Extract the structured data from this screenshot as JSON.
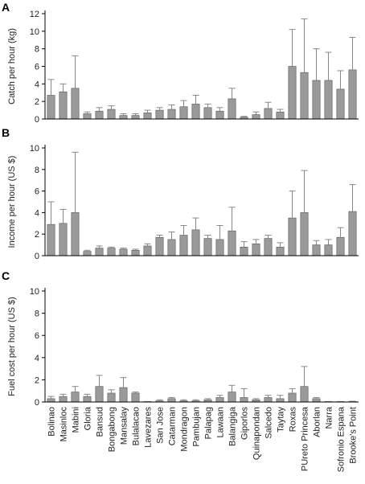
{
  "colors": {
    "bar": "#9a9a9a",
    "bar_stroke": "#555555",
    "error": "#888888",
    "axis": "#000000"
  },
  "chart_data": [
    {
      "type": "bar",
      "panel": "A",
      "ylabel": "Catch per hour (kg)",
      "ylim": [
        0,
        12
      ],
      "yticks": [
        0,
        2,
        4,
        6,
        8,
        10,
        12
      ],
      "categories": [
        "Bolinao",
        "Masinloc",
        "Mabini",
        "Gloria",
        "Bansud",
        "Bongabong",
        "Mansalay",
        "Bulalacao",
        "Lavezares",
        "San Jose",
        "Catarman",
        "Mondragon",
        "Pambujan",
        "Palapag",
        "Lawaan",
        "Balangiga",
        "Giporlos",
        "Quinapondan",
        "Salcedo",
        "Taytay",
        "Roxas",
        "PUreto Princesa",
        "Aborlan",
        "Narra",
        "Sofronio Espana",
        "Brooke's Point"
      ],
      "values": [
        2.7,
        3.1,
        3.5,
        0.6,
        0.9,
        1.1,
        0.4,
        0.4,
        0.7,
        1.0,
        1.1,
        1.4,
        1.7,
        1.3,
        0.9,
        2.3,
        0.2,
        0.5,
        1.2,
        0.8,
        6.0,
        5.3,
        4.4,
        4.4,
        3.4,
        5.6
      ],
      "errors": [
        1.8,
        0.9,
        3.7,
        0.2,
        0.4,
        0.4,
        0.2,
        0.2,
        0.3,
        0.3,
        0.5,
        0.7,
        1.0,
        0.4,
        0.4,
        1.2,
        0.1,
        0.3,
        0.7,
        0.3,
        4.2,
        6.1,
        3.6,
        3.2,
        2.1,
        3.7
      ]
    },
    {
      "type": "bar",
      "panel": "B",
      "ylabel": "Income per hour (US $)",
      "ylim": [
        0,
        10
      ],
      "yticks": [
        0,
        2,
        4,
        6,
        8,
        10
      ],
      "categories": [
        "Bolinao",
        "Masinloc",
        "Mabini",
        "Gloria",
        "Bansud",
        "Bongabong",
        "Mansalay",
        "Bulalacao",
        "Lavezares",
        "San Jose",
        "Catarman",
        "Mondragon",
        "Pambujan",
        "Palapag",
        "Lawaan",
        "Balangiga",
        "Giporlos",
        "Quinapondan",
        "Salcedo",
        "Taytay",
        "Roxas",
        "PUreto Princesa",
        "Aborlan",
        "Narra",
        "Sofronio Espana",
        "Brooke's Point"
      ],
      "values": [
        2.9,
        3.0,
        4.0,
        0.4,
        0.7,
        0.7,
        0.6,
        0.5,
        0.9,
        1.7,
        1.5,
        1.9,
        2.4,
        1.6,
        1.5,
        2.3,
        0.8,
        1.1,
        1.6,
        0.8,
        3.5,
        4.0,
        1.0,
        1.0,
        1.7,
        4.1
      ],
      "errors": [
        2.1,
        1.3,
        5.6,
        0.1,
        0.2,
        0.1,
        0.1,
        0.1,
        0.2,
        0.2,
        0.7,
        0.9,
        1.1,
        0.3,
        1.3,
        2.2,
        0.5,
        0.4,
        0.3,
        0.4,
        2.5,
        3.9,
        0.4,
        0.5,
        0.9,
        2.5
      ]
    },
    {
      "type": "bar",
      "panel": "C",
      "ylabel": "Fuel cost per hour (US $)",
      "ylim": [
        0,
        10
      ],
      "yticks": [
        0,
        2,
        4,
        6,
        8,
        10
      ],
      "categories": [
        "Bolinao",
        "Masinloc",
        "Mabini",
        "Gloria",
        "Bansud",
        "Bongabong",
        "Mansalay",
        "Bulalacao",
        "Lavezares",
        "San Jose",
        "Catarman",
        "Mondragon",
        "Pambujan",
        "Palapag",
        "Lawaan",
        "Balangiga",
        "Giporlos",
        "Quinapondan",
        "Salcedo",
        "Taytay",
        "Roxas",
        "PUreto Princesa",
        "Aborlan",
        "Narra",
        "Sofronio Espana",
        "Brooke's Point"
      ],
      "values": [
        0.3,
        0.5,
        0.9,
        0.5,
        1.4,
        0.8,
        1.3,
        0.8,
        0.02,
        0.1,
        0.3,
        0.1,
        0.1,
        0.2,
        0.4,
        0.9,
        0.4,
        0.2,
        0.4,
        0.3,
        0.8,
        1.4,
        0.3,
        0.02,
        0.02,
        0.05
      ],
      "errors": [
        0.2,
        0.2,
        0.5,
        0.2,
        1.0,
        0.3,
        0.9,
        0.1,
        0.02,
        0.1,
        0.1,
        0.1,
        0.1,
        0.1,
        0.2,
        0.6,
        0.8,
        0.1,
        0.2,
        0.3,
        0.4,
        1.8,
        0.1,
        0.02,
        0.02,
        0.02
      ]
    }
  ]
}
